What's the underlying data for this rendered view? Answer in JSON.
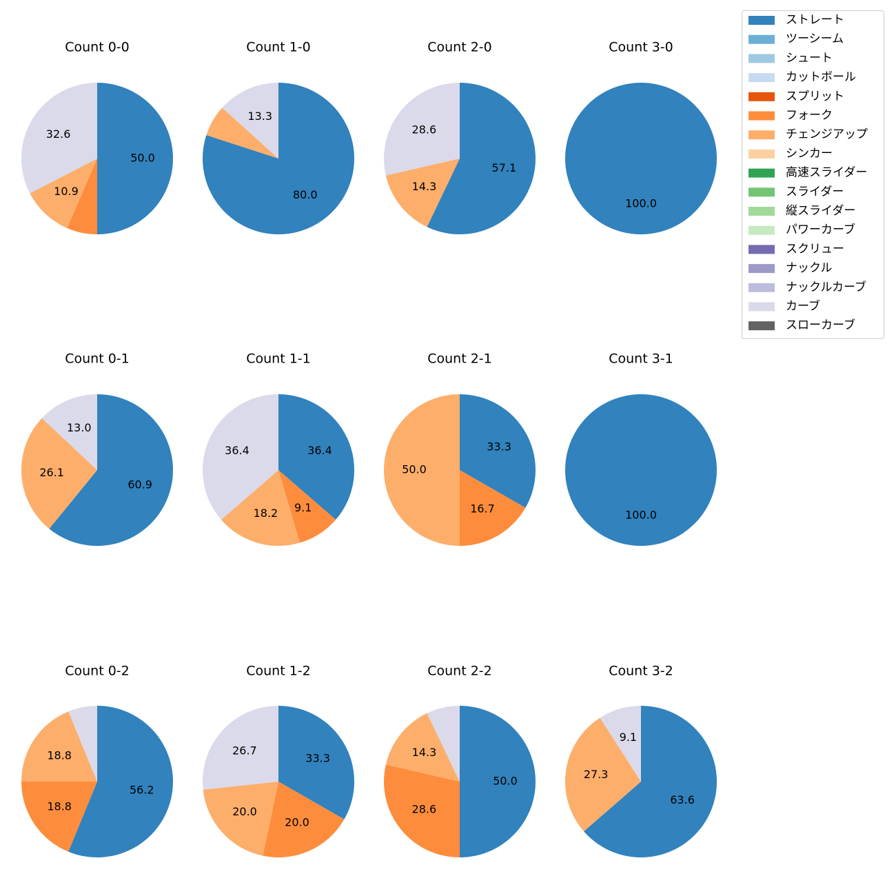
{
  "chart_data": {
    "type": "pie",
    "categories": [
      "ストレート",
      "ツーシーム",
      "シュート",
      "カットボール",
      "スプリット",
      "フォーク",
      "チェンジアップ",
      "シンカー",
      "高速スライダー",
      "スライダー",
      "縦スライダー",
      "パワーカーブ",
      "スクリュー",
      "ナックル",
      "ナックルカーブ",
      "カーブ",
      "スローカーブ"
    ],
    "colors": [
      "#3182bd",
      "#6baed6",
      "#9ecae1",
      "#c6dbef",
      "#e6550d",
      "#fd8d3c",
      "#fdae6b",
      "#fdd0a2",
      "#31a354",
      "#74c476",
      "#a1d99b",
      "#c7e9c0",
      "#756bb1",
      "#9e9ac8",
      "#bcbddc",
      "#dadaeb",
      "#636363"
    ],
    "legend_position": "top-right",
    "charts": [
      {
        "title": "Count 0-0",
        "values": {
          "ストレート": 50.0,
          "フォーク": 6.5,
          "チェンジアップ": 10.9,
          "カーブ": 32.6
        },
        "labels": {
          "ストレート": "50.0",
          "チェンジアップ": "10.9",
          "カーブ": "32.6"
        }
      },
      {
        "title": "Count 1-0",
        "values": {
          "ストレート": 80.0,
          "チェンジアップ": 6.7,
          "カーブ": 13.3
        },
        "labels": {
          "ストレート": "80.0",
          "カーブ": "13.3"
        }
      },
      {
        "title": "Count 2-0",
        "values": {
          "ストレート": 57.1,
          "チェンジアップ": 14.3,
          "カーブ": 28.6
        },
        "labels": {
          "ストレート": "57.1",
          "チェンジアップ": "14.3",
          "カーブ": "28.6"
        }
      },
      {
        "title": "Count 3-0",
        "values": {
          "ストレート": 100.0
        },
        "labels": {
          "ストレート": "100.0"
        }
      },
      {
        "title": "Count 0-1",
        "values": {
          "ストレート": 60.9,
          "チェンジアップ": 26.1,
          "カーブ": 13.0
        },
        "labels": {
          "ストレート": "60.9",
          "チェンジアップ": "26.1",
          "カーブ": "13.0"
        }
      },
      {
        "title": "Count 1-1",
        "values": {
          "ストレート": 36.4,
          "フォーク": 9.1,
          "チェンジアップ": 18.2,
          "カーブ": 36.4
        },
        "labels": {
          "ストレート": "36.4",
          "フォーク": "9.1",
          "チェンジアップ": "18.2",
          "カーブ": "36.4"
        }
      },
      {
        "title": "Count 2-1",
        "values": {
          "ストレート": 33.3,
          "フォーク": 16.7,
          "チェンジアップ": 50.0
        },
        "labels": {
          "ストレート": "33.3",
          "フォーク": "16.7",
          "チェンジアップ": "50.0"
        }
      },
      {
        "title": "Count 3-1",
        "values": {
          "ストレート": 100.0
        },
        "labels": {
          "ストレート": "100.0"
        }
      },
      {
        "title": "Count 0-2",
        "values": {
          "ストレート": 56.2,
          "フォーク": 18.8,
          "チェンジアップ": 18.8,
          "カーブ": 6.2
        },
        "labels": {
          "ストレート": "56.2",
          "フォーク": "18.8",
          "チェンジアップ": "18.8"
        }
      },
      {
        "title": "Count 1-2",
        "values": {
          "ストレート": 33.3,
          "フォーク": 20.0,
          "チェンジアップ": 20.0,
          "カーブ": 26.7
        },
        "labels": {
          "ストレート": "33.3",
          "フォーク": "20.0",
          "チェンジアップ": "20.0",
          "カーブ": "26.7"
        }
      },
      {
        "title": "Count 2-2",
        "values": {
          "ストレート": 50.0,
          "フォーク": 28.6,
          "チェンジアップ": 14.3,
          "カーブ": 7.1
        },
        "labels": {
          "ストレート": "50.0",
          "フォーク": "28.6",
          "チェンジアップ": "14.3"
        }
      },
      {
        "title": "Count 3-2",
        "values": {
          "ストレート": 63.6,
          "チェンジアップ": 27.3,
          "カーブ": 9.1
        },
        "labels": {
          "ストレート": "63.6",
          "チェンジアップ": "27.3",
          "カーブ": "9.1"
        }
      }
    ]
  }
}
